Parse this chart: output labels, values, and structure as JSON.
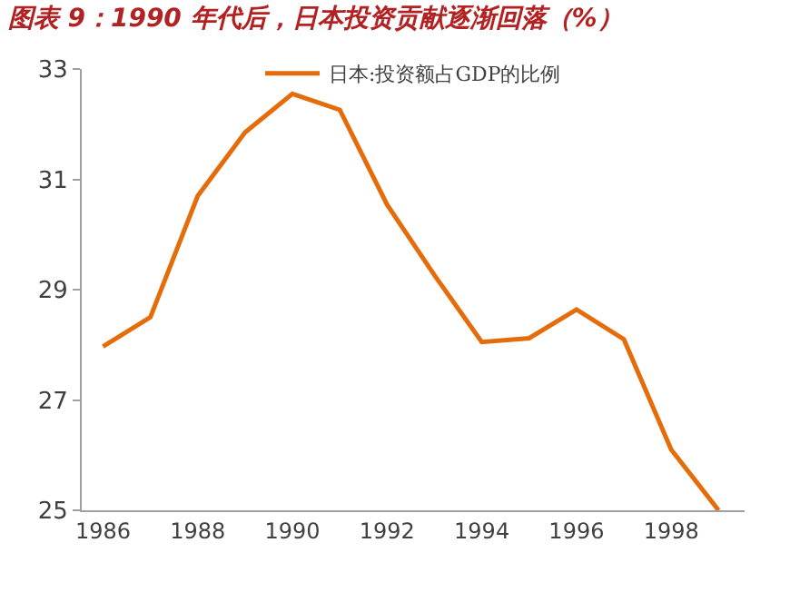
{
  "chart_data": {
    "type": "line",
    "title": "图表 9：1990 年代后，日本投资贡献逐渐回落（%）",
    "x": [
      1986,
      1987,
      1988,
      1989,
      1990,
      1991,
      1992,
      1993,
      1994,
      1995,
      1996,
      1997,
      1998,
      1999
    ],
    "series": [
      {
        "name": "日本:投资额占GDP的比例",
        "color": "#e46c0a",
        "values": [
          27.97,
          28.5,
          30.7,
          31.85,
          32.55,
          32.26,
          30.54,
          29.26,
          28.05,
          28.12,
          28.64,
          28.1,
          26.1,
          25.0
        ]
      }
    ],
    "xlim": [
      1985.55,
      1999.55
    ],
    "xticks": [
      1986,
      1988,
      1990,
      1992,
      1994,
      1996,
      1998
    ],
    "ylim": [
      25,
      33
    ],
    "yticks": [
      25,
      27,
      29,
      31,
      33
    ],
    "legend": "top",
    "marker": "none",
    "line_style": "solid"
  }
}
